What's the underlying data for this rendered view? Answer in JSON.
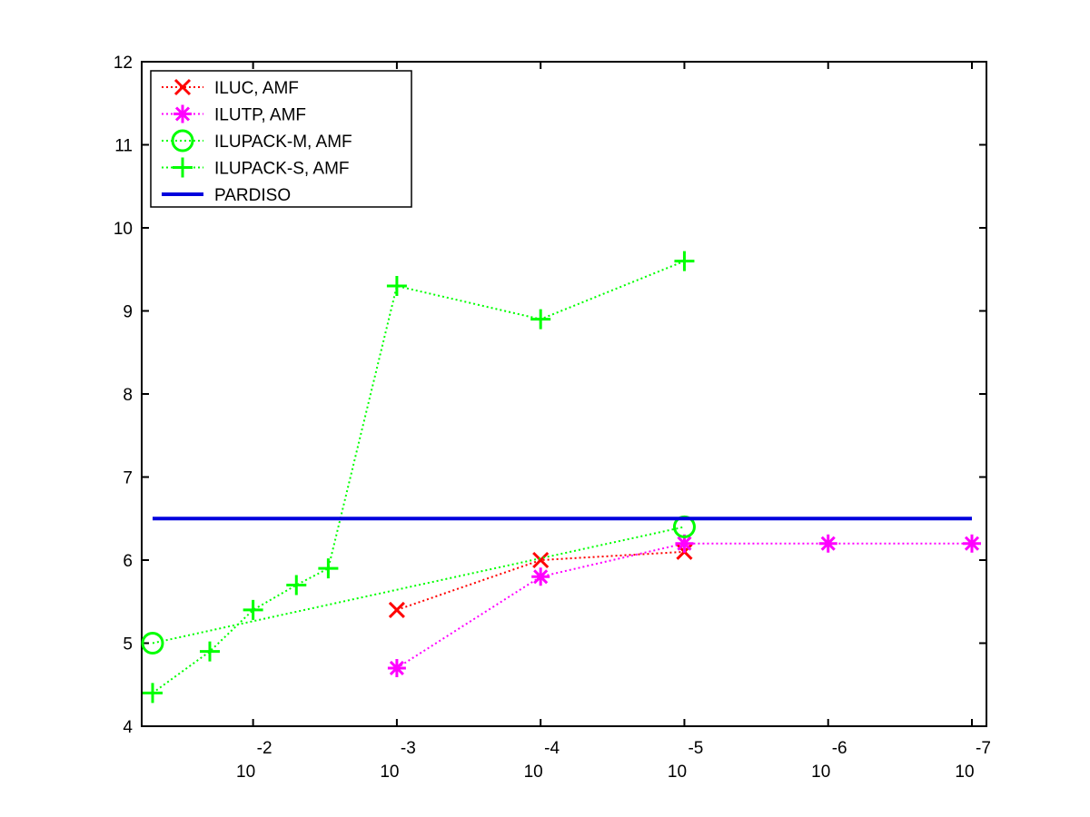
{
  "chart_data": {
    "type": "line",
    "xscale": "log",
    "x_reversed": true,
    "xlim": [
      0.05,
      1e-07
    ],
    "ylim": [
      4,
      12
    ],
    "yticks": [
      4,
      5,
      6,
      7,
      8,
      9,
      10,
      11,
      12
    ],
    "xticks": [
      {
        "value": 0.01,
        "base": "10",
        "exponent": "-2"
      },
      {
        "value": 0.001,
        "base": "10",
        "exponent": "-3"
      },
      {
        "value": 0.0001,
        "base": "10",
        "exponent": "-4"
      },
      {
        "value": 1e-05,
        "base": "10",
        "exponent": "-5"
      },
      {
        "value": 1e-06,
        "base": "10",
        "exponent": "-6"
      },
      {
        "value": 1e-07,
        "base": "10",
        "exponent": "-7"
      }
    ],
    "grid": false,
    "legend_position": "top-left",
    "title": "",
    "xlabel": "",
    "ylabel": "",
    "series": [
      {
        "name": "ILUC, AMF",
        "color": "#ff0000",
        "marker": "x",
        "linestyle": "dotted",
        "points": [
          [
            0.001,
            5.4
          ],
          [
            0.0001,
            6.0
          ],
          [
            1e-05,
            6.1
          ]
        ]
      },
      {
        "name": "ILUTP, AMF",
        "color": "#ff00ff",
        "marker": "star",
        "linestyle": "dotted",
        "points": [
          [
            0.001,
            4.7
          ],
          [
            0.0001,
            5.8
          ],
          [
            1e-05,
            6.2
          ],
          [
            1e-06,
            6.2
          ],
          [
            1e-07,
            6.2
          ]
        ]
      },
      {
        "name": "ILUPACK-M, AMF",
        "color": "#00ff00",
        "marker": "circle",
        "linestyle": "dotted",
        "points": [
          [
            0.05,
            5.0
          ],
          [
            1e-05,
            6.4
          ]
        ]
      },
      {
        "name": "ILUPACK-S, AMF",
        "color": "#00ff00",
        "marker": "plus",
        "linestyle": "dotted",
        "points": [
          [
            0.05,
            4.4
          ],
          [
            0.02,
            4.9
          ],
          [
            0.01,
            5.4
          ],
          [
            0.005,
            5.7
          ],
          [
            0.003,
            5.9
          ],
          [
            0.001,
            9.3
          ],
          [
            0.0001,
            8.9
          ],
          [
            1e-05,
            9.6
          ]
        ]
      },
      {
        "name": "PARDISO",
        "color": "#0000dd",
        "marker": "none",
        "linestyle": "solid",
        "points": [
          [
            0.05,
            6.5
          ],
          [
            1e-07,
            6.5
          ]
        ]
      }
    ]
  }
}
